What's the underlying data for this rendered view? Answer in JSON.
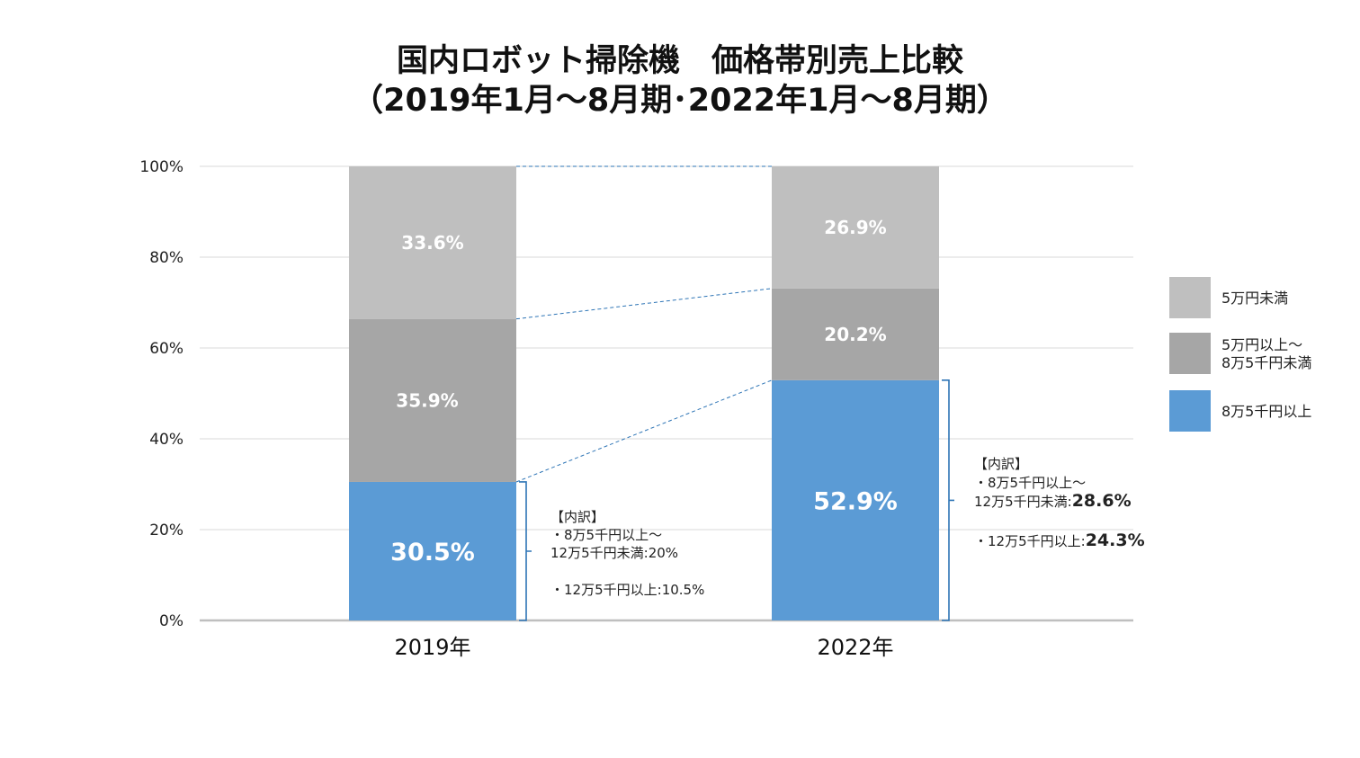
{
  "chart_data": {
    "type": "bar",
    "stacked": true,
    "title": "国内ロボット掃除機　価格帯別売上比較",
    "subtitle": "（2019年1月～8月期･2022年1月～8月期）",
    "categories": [
      "2019年",
      "2022年"
    ],
    "series": [
      {
        "name": "8万5千円以上",
        "color": "#5b9bd5",
        "values": [
          30.5,
          52.9
        ]
      },
      {
        "name": "5万円以上～\n8万5千円未満",
        "color": "#a6a6a6",
        "values": [
          35.9,
          20.2
        ]
      },
      {
        "name": "5万円未満",
        "color": "#bfbfbf",
        "values": [
          33.6,
          26.9
        ]
      }
    ],
    "data_labels": [
      [
        "30.5%",
        "35.9%",
        "33.6%"
      ],
      [
        "52.9%",
        "20.2%",
        "26.9%"
      ]
    ],
    "ylim": [
      0,
      100
    ],
    "yticks": [
      0,
      20,
      40,
      60,
      80,
      100
    ],
    "ytick_labels": [
      "0%",
      "20%",
      "40%",
      "60%",
      "80%",
      "100%"
    ],
    "xlabel": "",
    "ylabel": "",
    "grid": true,
    "legend_position": "right",
    "legend_order": [
      "5万円未満",
      "5万円以上～\n8万5千円未満",
      "8万5千円以上"
    ],
    "annotations": [
      {
        "category": "2019年",
        "lines": [
          "【内訳】",
          "・8万5千円以上～",
          "12万5千円未満:",
          "・12万5千円以上:"
        ],
        "values": [
          "20%",
          "10.5%"
        ]
      },
      {
        "category": "2022年",
        "lines": [
          "【内訳】",
          "・8万5千円以上～",
          "12万5千円未満:",
          "・12万5千円以上:"
        ],
        "values": [
          "28.6%",
          "24.3%"
        ]
      }
    ]
  }
}
